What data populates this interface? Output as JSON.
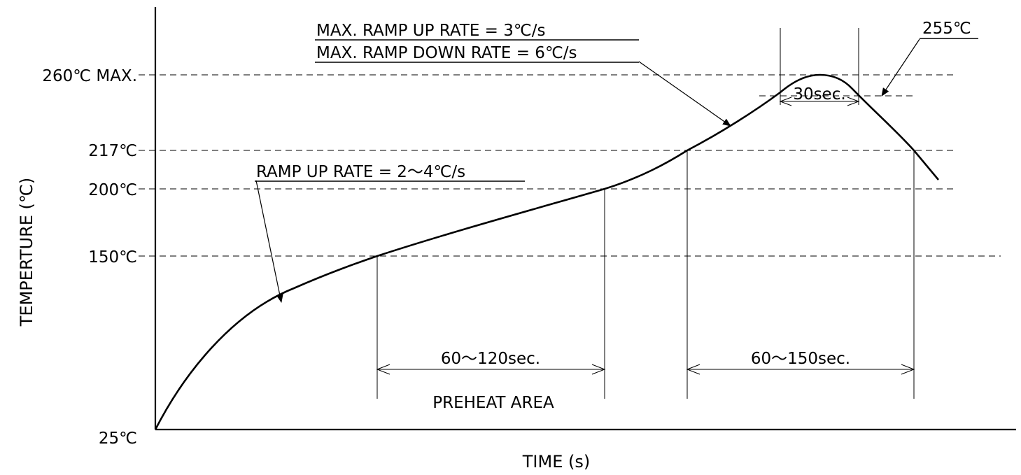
{
  "chart_data": {
    "type": "line",
    "title": "",
    "xlabel": "TIME (s)",
    "ylabel": "TEMPERTURE (℃)",
    "y_tick_labels": [
      {
        "value": 25,
        "label": "25℃"
      },
      {
        "value": 150,
        "label": "150℃"
      },
      {
        "value": 200,
        "label": "200℃"
      },
      {
        "value": 217,
        "label": "217℃"
      },
      {
        "value": 260,
        "label": "260℃ MAX."
      }
    ],
    "series": [
      {
        "name": "",
        "points": [
          {
            "x": 0,
            "y": 25
          },
          {
            "x": 30,
            "y": 85
          },
          {
            "x": 60,
            "y": 125
          },
          {
            "x": 95,
            "y": 150
          },
          {
            "x": 140,
            "y": 167
          },
          {
            "x": 185,
            "y": 183
          },
          {
            "x": 215,
            "y": 200
          },
          {
            "x": 245,
            "y": 217
          },
          {
            "x": 270,
            "y": 234
          },
          {
            "x": 292,
            "y": 252
          },
          {
            "x": 305,
            "y": 260
          },
          {
            "x": 318,
            "y": 252
          },
          {
            "x": 333,
            "y": 236
          },
          {
            "x": 348,
            "y": 217
          },
          {
            "x": 356,
            "y": 206
          }
        ]
      }
    ],
    "annotations": {
      "ramp_up_rate": "RAMP UP RATE = 2～4℃/s",
      "max_ramp_up": "MAX. RAMP UP RATE = 3℃/s",
      "max_ramp_down": "MAX. RAMP DOWN RATE = 6℃/s",
      "peak_marker": "255℃",
      "time_above_255": "30sec.",
      "preheat_time": "60～120sec.",
      "preheat_label": "PREHEAT AREA",
      "time_above_217": "60～150sec."
    },
    "grid": false,
    "legend": "none"
  }
}
